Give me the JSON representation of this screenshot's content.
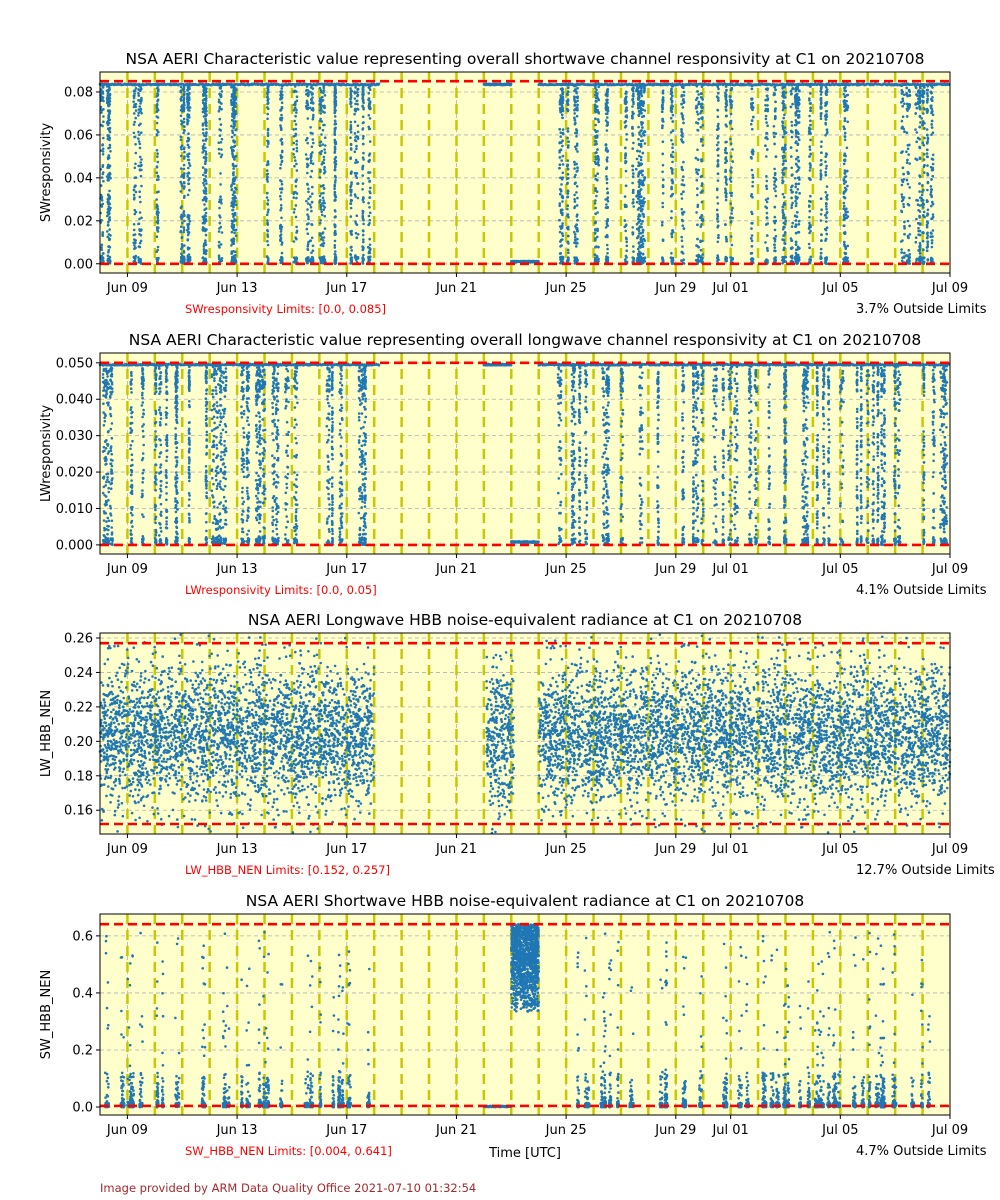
{
  "footer": "Image provided by ARM Data Quality Office 2021-07-10 01:32:54",
  "xlabel": "Time [UTC]",
  "chart_data": [
    {
      "type": "scatter",
      "title": "NSA AERI Characteristic value representing overall shortwave channel responsivity at C1 on 20210708",
      "ylabel": "SWresponsivity",
      "xlim_days": [
        "2021-06-08",
        "2021-07-09"
      ],
      "xticks": [
        "Jun 09",
        "Jun 13",
        "Jun 17",
        "Jun 21",
        "Jun 25",
        "Jun 29",
        "Jul 01",
        "Jul 05",
        "Jul 09"
      ],
      "xtick_days": [
        1,
        5,
        9,
        13,
        17,
        21,
        23,
        27,
        31
      ],
      "ylim": [
        -0.0043,
        0.0893
      ],
      "yticks": [
        "0.00",
        "0.02",
        "0.04",
        "0.06",
        "0.08"
      ],
      "ytick_values": [
        0,
        0.02,
        0.04,
        0.06,
        0.08
      ],
      "limits": [
        0.0,
        0.085
      ],
      "limits_label": "SWresponsivity Limits: [0.0, 0.085]",
      "outside_label": "3.7% Outside Limits",
      "model": "responsivity",
      "top_value": 0.0835,
      "segments": [
        {
          "start": 0,
          "end": 10.2,
          "kind": "scatter",
          "n": 2200
        },
        {
          "start": 14.0,
          "end": 15.0,
          "kind": "flat",
          "value": 0.0835,
          "n": 120
        },
        {
          "start": 15.0,
          "end": 16.0,
          "kind": "flat",
          "value": 0.001,
          "n": 120
        },
        {
          "start": 16.0,
          "end": 31,
          "kind": "scatter",
          "n": 3400
        }
      ]
    },
    {
      "type": "scatter",
      "title": "NSA AERI Characteristic value representing overall longwave channel responsivity at C1 on 20210708",
      "ylabel": "LWresponsivity",
      "xlim_days": [
        "2021-06-08",
        "2021-07-09"
      ],
      "xticks": [
        "Jun 09",
        "Jun 13",
        "Jun 17",
        "Jun 21",
        "Jun 25",
        "Jun 29",
        "Jul 01",
        "Jul 05",
        "Jul 09"
      ],
      "xtick_days": [
        1,
        5,
        9,
        13,
        17,
        21,
        23,
        27,
        31
      ],
      "ylim": [
        -0.0025,
        0.0527
      ],
      "yticks": [
        "0.000",
        "0.010",
        "0.020",
        "0.030",
        "0.040",
        "0.050"
      ],
      "ytick_values": [
        0,
        0.01,
        0.02,
        0.03,
        0.04,
        0.05
      ],
      "limits": [
        0.0,
        0.05
      ],
      "limits_label": "LWresponsivity Limits: [0.0, 0.05]",
      "outside_label": "4.1% Outside Limits",
      "model": "responsivity",
      "top_value": 0.0495,
      "segments": [
        {
          "start": 0,
          "end": 10.2,
          "kind": "scatter",
          "n": 2200
        },
        {
          "start": 14.0,
          "end": 15.0,
          "kind": "flat",
          "value": 0.0495,
          "n": 120
        },
        {
          "start": 15.0,
          "end": 16.0,
          "kind": "flat",
          "value": 0.0008,
          "n": 120
        },
        {
          "start": 16.0,
          "end": 31,
          "kind": "scatter",
          "n": 3400
        }
      ]
    },
    {
      "type": "scatter",
      "title": "NSA AERI Longwave HBB noise-equivalent radiance at C1 on 20210708",
      "ylabel": "LW_HBB_NEN",
      "xlim_days": [
        "2021-06-08",
        "2021-07-09"
      ],
      "xticks": [
        "Jun 09",
        "Jun 13",
        "Jun 17",
        "Jun 21",
        "Jun 25",
        "Jun 29",
        "Jul 01",
        "Jul 05",
        "Jul 09"
      ],
      "xtick_days": [
        1,
        5,
        9,
        13,
        17,
        21,
        23,
        27,
        31
      ],
      "ylim": [
        0.1462,
        0.2629
      ],
      "yticks": [
        "0.16",
        "0.18",
        "0.20",
        "0.22",
        "0.24",
        "0.26"
      ],
      "ytick_values": [
        0.16,
        0.18,
        0.2,
        0.22,
        0.24,
        0.26
      ],
      "limits": [
        0.152,
        0.257
      ],
      "limits_label": "LW_HBB_NEN Limits: [0.152, 0.257]",
      "outside_label": "12.7% Outside Limits",
      "model": "normal",
      "mean": 0.203,
      "sd": 0.021,
      "segments": [
        {
          "start": 0,
          "end": 10.0,
          "kind": "scatter",
          "n": 3200
        },
        {
          "start": 14.1,
          "end": 15.1,
          "kind": "scatter",
          "n": 350
        },
        {
          "start": 16.0,
          "end": 31,
          "kind": "scatter",
          "n": 4800
        }
      ]
    },
    {
      "type": "scatter",
      "title": "NSA AERI Shortwave HBB noise-equivalent radiance at C1 on 20210708",
      "ylabel": "SW_HBB_NEN",
      "xlim_days": [
        "2021-06-08",
        "2021-07-09"
      ],
      "xticks": [
        "Jun 09",
        "Jun 13",
        "Jun 17",
        "Jun 21",
        "Jun 25",
        "Jun 29",
        "Jul 01",
        "Jul 05",
        "Jul 09"
      ],
      "xtick_days": [
        1,
        5,
        9,
        13,
        17,
        21,
        23,
        27,
        31
      ],
      "ylim": [
        -0.028,
        0.6767
      ],
      "yticks": [
        "0.0",
        "0.2",
        "0.4",
        "0.6"
      ],
      "ytick_values": [
        0,
        0.2,
        0.4,
        0.6
      ],
      "limits": [
        0.004,
        0.641
      ],
      "limits_label": "SW_HBB_NEN Limits: [0.004, 0.641]",
      "outside_label": "4.7% Outside Limits",
      "model": "skewed",
      "segments": [
        {
          "start": 0,
          "end": 10.2,
          "kind": "scatter",
          "n": 2000
        },
        {
          "start": 14.0,
          "end": 15.0,
          "kind": "flat",
          "value": 0.002,
          "n": 100
        },
        {
          "start": 15.0,
          "end": 16.0,
          "kind": "cluster",
          "low": 0.33,
          "high": 0.641,
          "n": 1200
        },
        {
          "start": 16.0,
          "end": 31,
          "kind": "scatter",
          "n": 3000
        }
      ]
    }
  ]
}
